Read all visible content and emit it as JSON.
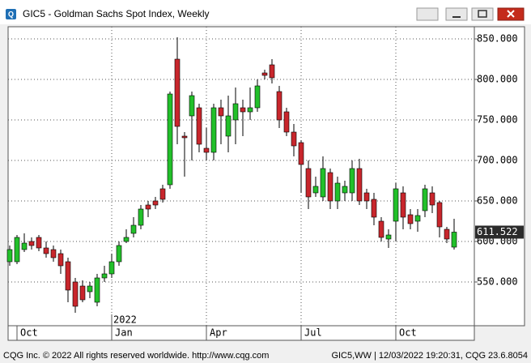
{
  "window": {
    "title": "GIC5 - Goldman Sachs Spot Index, Weekly",
    "footer_left": "CQG Inc. © 2022 All rights reserved worldwide. http://www.cqg.com",
    "footer_right": "GIC5,WW | 12/03/2022 19:20:31, CQG 23.6.8054"
  },
  "chart_data": {
    "type": "candlestick",
    "categories": [
      null,
      "Oct",
      null,
      null,
      null,
      null,
      null,
      null,
      null,
      null,
      null,
      null,
      null,
      null,
      "Jan",
      null,
      null,
      null,
      null,
      null,
      null,
      null,
      null,
      null,
      null,
      null,
      null,
      "Apr",
      null,
      null,
      null,
      null,
      null,
      null,
      null,
      null,
      null,
      null,
      null,
      null,
      "Jul",
      null,
      null,
      null,
      null,
      null,
      null,
      null,
      null,
      null,
      null,
      null,
      null,
      "Oct",
      null,
      null,
      null,
      null,
      null,
      null,
      null,
      null
    ],
    "year_label": "2022",
    "open": [
      575,
      575,
      590,
      600,
      605,
      592,
      590,
      585,
      575,
      550,
      545,
      538,
      525,
      555,
      560,
      575,
      600,
      610,
      620,
      645,
      650,
      665,
      670,
      825,
      730,
      755,
      765,
      715,
      710,
      765,
      730,
      750,
      765,
      760,
      765,
      808,
      818,
      785,
      760,
      735,
      722,
      690,
      660,
      655,
      685,
      650,
      660,
      660,
      690,
      660,
      652,
      625,
      603,
      625,
      660,
      633,
      625,
      638,
      660,
      648,
      615,
      593
    ],
    "high": [
      595,
      608,
      610,
      605,
      608,
      600,
      595,
      590,
      580,
      555,
      552,
      550,
      560,
      570,
      585,
      600,
      615,
      630,
      645,
      650,
      655,
      670,
      785,
      852,
      735,
      785,
      770,
      740,
      770,
      775,
      780,
      790,
      775,
      790,
      800,
      812,
      825,
      792,
      765,
      745,
      725,
      700,
      680,
      705,
      690,
      680,
      675,
      700,
      702,
      665,
      660,
      630,
      615,
      672,
      668,
      640,
      640,
      670,
      668,
      650,
      618,
      628
    ],
    "low": [
      570,
      572,
      587,
      590,
      588,
      580,
      575,
      560,
      525,
      512,
      525,
      530,
      520,
      550,
      555,
      570,
      598,
      605,
      615,
      630,
      640,
      648,
      665,
      720,
      680,
      700,
      710,
      700,
      700,
      720,
      710,
      720,
      730,
      750,
      760,
      800,
      795,
      740,
      730,
      705,
      660,
      640,
      655,
      650,
      640,
      640,
      650,
      650,
      645,
      640,
      620,
      600,
      592,
      600,
      615,
      615,
      612,
      630,
      635,
      605,
      598,
      590
    ],
    "close": [
      590,
      605,
      598,
      595,
      592,
      585,
      580,
      570,
      540,
      520,
      528,
      545,
      555,
      560,
      575,
      595,
      605,
      620,
      640,
      640,
      645,
      652,
      782,
      742,
      728,
      780,
      720,
      710,
      765,
      755,
      755,
      770,
      760,
      765,
      792,
      805,
      802,
      750,
      735,
      718,
      695,
      655,
      668,
      690,
      650,
      672,
      668,
      690,
      650,
      650,
      630,
      605,
      608,
      665,
      630,
      622,
      632,
      665,
      645,
      618,
      603,
      611.522
    ],
    "up_color": "#22c02a",
    "down_color": "#c8262c",
    "ylim": [
      496,
      865
    ],
    "yticks": [
      {
        "value": 550,
        "label": "550.000"
      },
      {
        "value": 600,
        "label": "600.000"
      },
      {
        "value": 650,
        "label": "650.000"
      },
      {
        "value": 700,
        "label": "700.000"
      },
      {
        "value": 750,
        "label": "750.000"
      },
      {
        "value": 800,
        "label": "800.000"
      },
      {
        "value": 850,
        "label": "850.000"
      }
    ],
    "last_price": {
      "value": 611.522,
      "label": "611.522"
    },
    "grid": true
  }
}
